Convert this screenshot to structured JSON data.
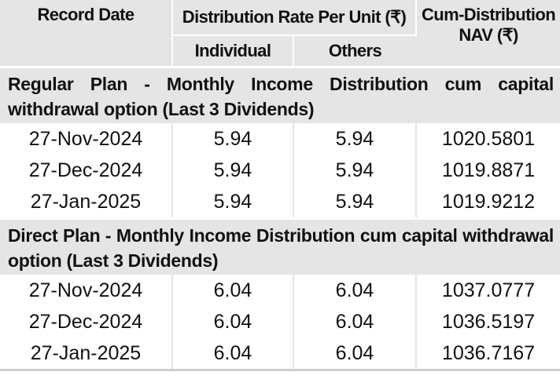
{
  "headers": {
    "record_date": "Record Date",
    "distribution_rate": "Distribution Rate Per Unit (₹)",
    "individual": "Individual",
    "others": "Others",
    "cum_nav_line1": "Cum-Distribution",
    "cum_nav_line2": "NAV (₹)"
  },
  "sections": [
    {
      "title": "Regular Plan - Monthly Income Distribution cum capital withdrawal option (Last 3 Dividends)",
      "rows": [
        {
          "date": "27-Nov-2024",
          "individual": "5.94",
          "others": "5.94",
          "nav": "1020.5801"
        },
        {
          "date": "27-Dec-2024",
          "individual": "5.94",
          "others": "5.94",
          "nav": "1019.8871"
        },
        {
          "date": "27-Jan-2025",
          "individual": "5.94",
          "others": "5.94",
          "nav": "1019.9212"
        }
      ]
    },
    {
      "title": "Direct Plan - Monthly Income Distribution cum capital withdrawal option (Last 3 Dividends)",
      "rows": [
        {
          "date": "27-Nov-2024",
          "individual": "6.04",
          "others": "6.04",
          "nav": "1037.0777"
        },
        {
          "date": "27-Dec-2024",
          "individual": "6.04",
          "others": "6.04",
          "nav": "1036.5197"
        },
        {
          "date": "27-Jan-2025",
          "individual": "6.04",
          "others": "6.04",
          "nav": "1036.7167"
        }
      ]
    }
  ],
  "colors": {
    "header_bg": "#e5e5e5",
    "text": "#111111"
  }
}
